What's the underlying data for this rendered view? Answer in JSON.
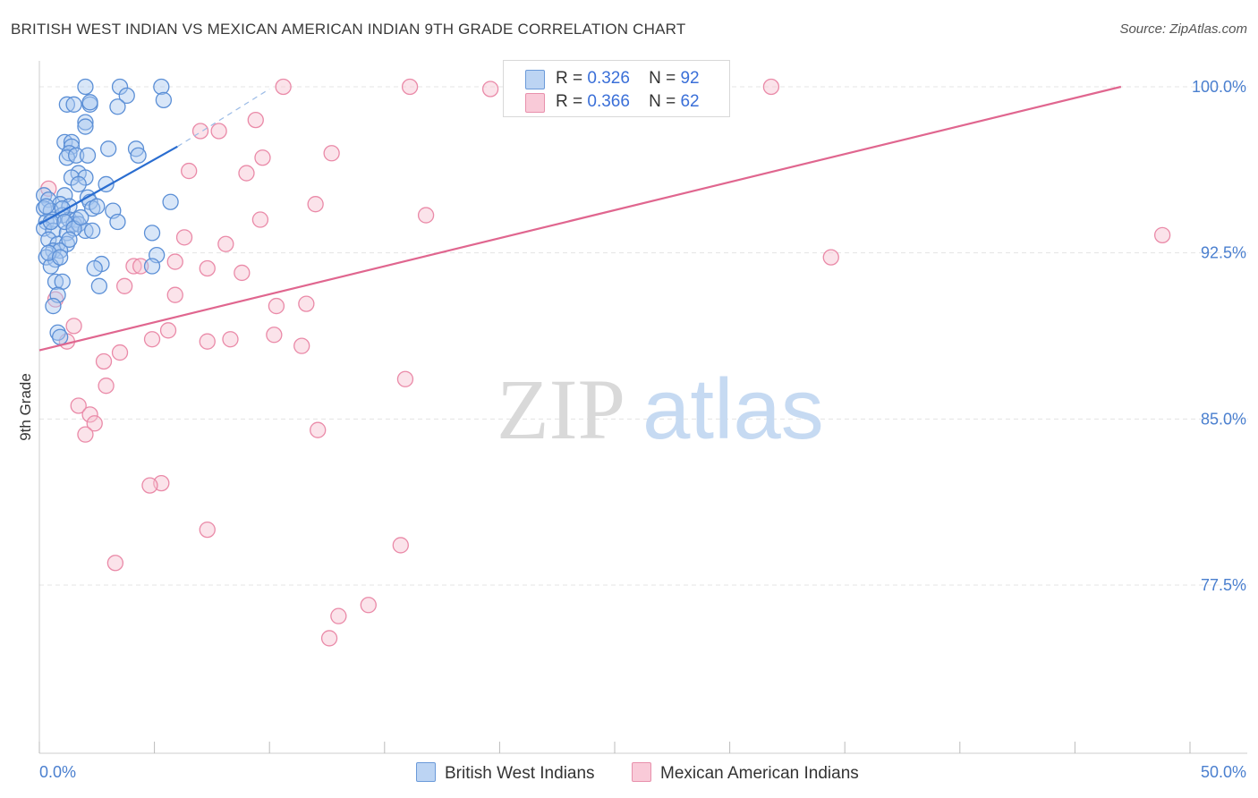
{
  "header": {
    "title": "BRITISH WEST INDIAN VS MEXICAN AMERICAN INDIAN 9TH GRADE CORRELATION CHART",
    "source": "Source: ZipAtlas.com"
  },
  "watermark": {
    "zip": "ZIP",
    "atlas": "atlas"
  },
  "legend": {
    "r_label": "R =",
    "n_label": "N =",
    "items": [
      {
        "r": "0.326",
        "n": "92"
      },
      {
        "r": "0.366",
        "n": "62"
      }
    ]
  },
  "colors": {
    "blue_fill": "#a9c8f0",
    "blue_stroke": "#5b8fd6",
    "blue_line": "#2a6dd0",
    "pink_fill": "#f7c1d1",
    "pink_stroke": "#ea8aa8",
    "pink_line": "#e0668f",
    "grid": "#e4e4e4",
    "tick_text": "#4a7fcf"
  },
  "chart_data": {
    "type": "scatter",
    "title": "BRITISH WEST INDIAN VS MEXICAN AMERICAN INDIAN 9TH GRADE CORRELATION CHART",
    "xlabel": "",
    "ylabel": "9th Grade",
    "xlim": [
      0,
      50
    ],
    "ylim": [
      71.5,
      100.8
    ],
    "x_tick_labels": [
      "0.0%",
      "50.0%"
    ],
    "y_ticks": [
      77.5,
      85.0,
      92.5,
      100.0
    ],
    "y_tick_labels": [
      "77.5%",
      "85.0%",
      "92.5%",
      "100.0%"
    ],
    "grid": true,
    "legend_position": "bottom",
    "series": [
      {
        "name": "British West Indians",
        "r": 0.326,
        "n": 92,
        "trend": {
          "x": [
            0.0,
            6.0
          ],
          "y": [
            93.8,
            97.3
          ],
          "dashed_to": [
            10.0,
            99.9
          ]
        },
        "points": [
          [
            2.0,
            100.0
          ],
          [
            3.5,
            100.0
          ],
          [
            5.3,
            100.0
          ],
          [
            3.8,
            99.6
          ],
          [
            1.2,
            99.2
          ],
          [
            1.5,
            99.2
          ],
          [
            2.2,
            99.2
          ],
          [
            2.2,
            99.3
          ],
          [
            3.4,
            99.1
          ],
          [
            5.4,
            99.4
          ],
          [
            2.0,
            98.4
          ],
          [
            2.0,
            98.2
          ],
          [
            1.1,
            97.5
          ],
          [
            1.4,
            97.5
          ],
          [
            1.4,
            97.3
          ],
          [
            3.0,
            97.2
          ],
          [
            4.2,
            97.2
          ],
          [
            1.3,
            97.0
          ],
          [
            1.2,
            96.8
          ],
          [
            1.6,
            96.9
          ],
          [
            2.1,
            96.9
          ],
          [
            4.3,
            96.9
          ],
          [
            1.7,
            96.1
          ],
          [
            1.4,
            95.9
          ],
          [
            2.0,
            95.9
          ],
          [
            1.7,
            95.6
          ],
          [
            2.9,
            95.6
          ],
          [
            0.2,
            95.1
          ],
          [
            1.1,
            95.1
          ],
          [
            2.1,
            95.0
          ],
          [
            0.4,
            94.9
          ],
          [
            0.9,
            94.7
          ],
          [
            1.3,
            94.6
          ],
          [
            2.2,
            94.8
          ],
          [
            2.3,
            94.5
          ],
          [
            0.2,
            94.5
          ],
          [
            0.5,
            94.4
          ],
          [
            1.0,
            94.2
          ],
          [
            1.3,
            94.0
          ],
          [
            1.6,
            94.0
          ],
          [
            3.2,
            94.4
          ],
          [
            5.7,
            94.8
          ],
          [
            0.3,
            93.9
          ],
          [
            0.6,
            94.0
          ],
          [
            1.5,
            93.8
          ],
          [
            1.7,
            93.8
          ],
          [
            3.4,
            93.9
          ],
          [
            0.2,
            93.6
          ],
          [
            0.6,
            93.5
          ],
          [
            1.2,
            93.4
          ],
          [
            2.0,
            93.5
          ],
          [
            2.3,
            93.5
          ],
          [
            4.9,
            93.4
          ],
          [
            0.4,
            93.1
          ],
          [
            0.8,
            92.9
          ],
          [
            1.2,
            92.9
          ],
          [
            0.6,
            92.6
          ],
          [
            0.9,
            92.6
          ],
          [
            0.3,
            92.3
          ],
          [
            0.7,
            92.2
          ],
          [
            5.1,
            92.4
          ],
          [
            2.7,
            92.0
          ],
          [
            0.5,
            91.9
          ],
          [
            4.9,
            91.9
          ],
          [
            2.4,
            91.8
          ],
          [
            0.7,
            91.2
          ],
          [
            1.0,
            91.2
          ],
          [
            2.6,
            91.0
          ],
          [
            0.8,
            90.6
          ],
          [
            0.6,
            90.1
          ],
          [
            0.8,
            88.9
          ],
          [
            0.9,
            88.7
          ],
          [
            0.3,
            94.6
          ],
          [
            0.5,
            93.9
          ],
          [
            1.0,
            94.5
          ],
          [
            1.1,
            93.9
          ],
          [
            1.5,
            93.6
          ],
          [
            1.8,
            94.1
          ],
          [
            2.5,
            94.6
          ],
          [
            0.4,
            92.5
          ],
          [
            0.9,
            92.3
          ],
          [
            1.3,
            93.1
          ]
        ]
      },
      {
        "name": "Mexican American Indians",
        "r": 0.366,
        "n": 62,
        "trend": {
          "x": [
            0.0,
            47.0
          ],
          "y": [
            88.1,
            100.0
          ]
        },
        "points": [
          [
            10.6,
            100.0
          ],
          [
            16.1,
            100.0
          ],
          [
            19.6,
            99.9
          ],
          [
            27.5,
            100.0
          ],
          [
            28.9,
            100.0
          ],
          [
            31.8,
            100.0
          ],
          [
            7.0,
            98.0
          ],
          [
            7.8,
            98.0
          ],
          [
            9.4,
            98.5
          ],
          [
            9.7,
            96.8
          ],
          [
            12.7,
            97.0
          ],
          [
            6.5,
            96.2
          ],
          [
            9.0,
            96.1
          ],
          [
            12.0,
            94.7
          ],
          [
            16.8,
            94.2
          ],
          [
            9.6,
            94.0
          ],
          [
            6.3,
            93.2
          ],
          [
            8.1,
            92.9
          ],
          [
            48.8,
            93.3
          ],
          [
            34.4,
            92.3
          ],
          [
            5.9,
            92.1
          ],
          [
            4.1,
            91.9
          ],
          [
            4.4,
            91.9
          ],
          [
            7.3,
            91.8
          ],
          [
            8.8,
            91.6
          ],
          [
            3.7,
            91.0
          ],
          [
            5.9,
            90.6
          ],
          [
            11.6,
            90.2
          ],
          [
            10.3,
            90.1
          ],
          [
            1.5,
            89.2
          ],
          [
            5.6,
            89.0
          ],
          [
            4.9,
            88.6
          ],
          [
            7.3,
            88.5
          ],
          [
            8.3,
            88.6
          ],
          [
            10.2,
            88.8
          ],
          [
            11.4,
            88.3
          ],
          [
            1.2,
            88.5
          ],
          [
            3.5,
            88.0
          ],
          [
            2.8,
            87.6
          ],
          [
            15.9,
            86.8
          ],
          [
            2.9,
            86.5
          ],
          [
            1.7,
            85.6
          ],
          [
            2.2,
            85.2
          ],
          [
            2.4,
            84.8
          ],
          [
            2.0,
            84.3
          ],
          [
            12.1,
            84.5
          ],
          [
            5.3,
            82.1
          ],
          [
            4.8,
            82.0
          ],
          [
            7.3,
            80.0
          ],
          [
            15.7,
            79.3
          ],
          [
            3.3,
            78.5
          ],
          [
            14.3,
            76.6
          ],
          [
            13.0,
            76.1
          ],
          [
            12.6,
            75.1
          ],
          [
            0.4,
            95.4
          ],
          [
            0.7,
            90.4
          ]
        ]
      }
    ]
  }
}
